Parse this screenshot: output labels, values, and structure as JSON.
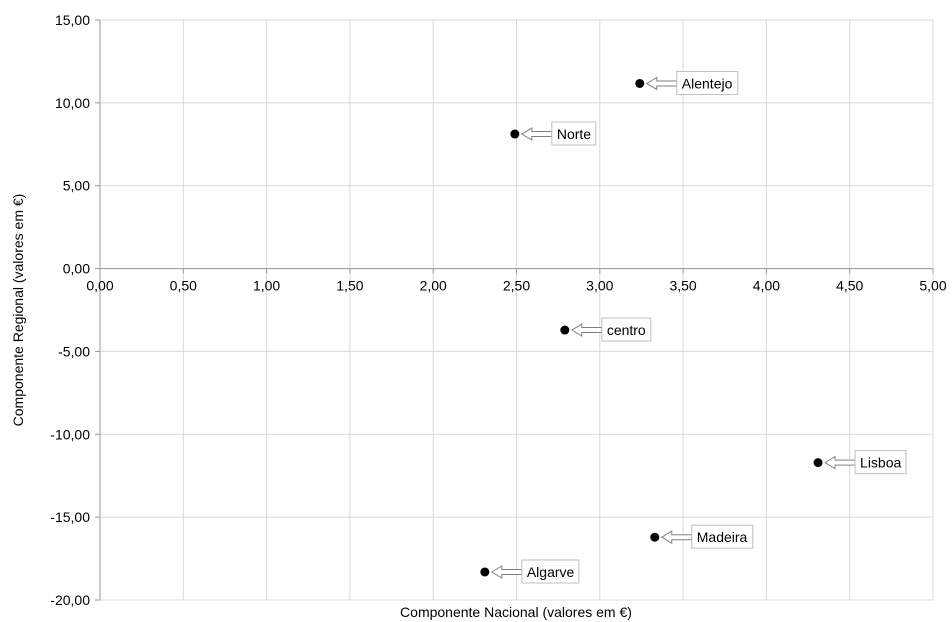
{
  "chart_data": {
    "type": "scatter",
    "xlabel": "Componente Nacional (valores em €)",
    "ylabel": "Componente Regional (valores em €)",
    "xlim": [
      0,
      5
    ],
    "ylim": [
      -20,
      15
    ],
    "x_ticks": [
      "0,00",
      "0,50",
      "1,00",
      "1,50",
      "2,00",
      "2,50",
      "3,00",
      "3,50",
      "4,00",
      "4,50",
      "5,00"
    ],
    "y_ticks": [
      "15,00",
      "10,00",
      "5,00",
      "0,00",
      "-5,00",
      "-10,00",
      "-15,00",
      "-20,00"
    ],
    "grid": true,
    "legend": "none",
    "point_color": "#000000",
    "label_box_border": "#bfbfbf",
    "points": [
      {
        "label": "Alentejo",
        "x": 3.24,
        "y": 11.17
      },
      {
        "label": "Norte",
        "x": 2.49,
        "y": 8.12
      },
      {
        "label": "centro",
        "x": 2.79,
        "y": -3.71
      },
      {
        "label": "Lisboa",
        "x": 4.31,
        "y": -11.71
      },
      {
        "label": "Madeira",
        "x": 3.33,
        "y": -16.21
      },
      {
        "label": "Algarve",
        "x": 2.31,
        "y": -18.31
      }
    ]
  }
}
